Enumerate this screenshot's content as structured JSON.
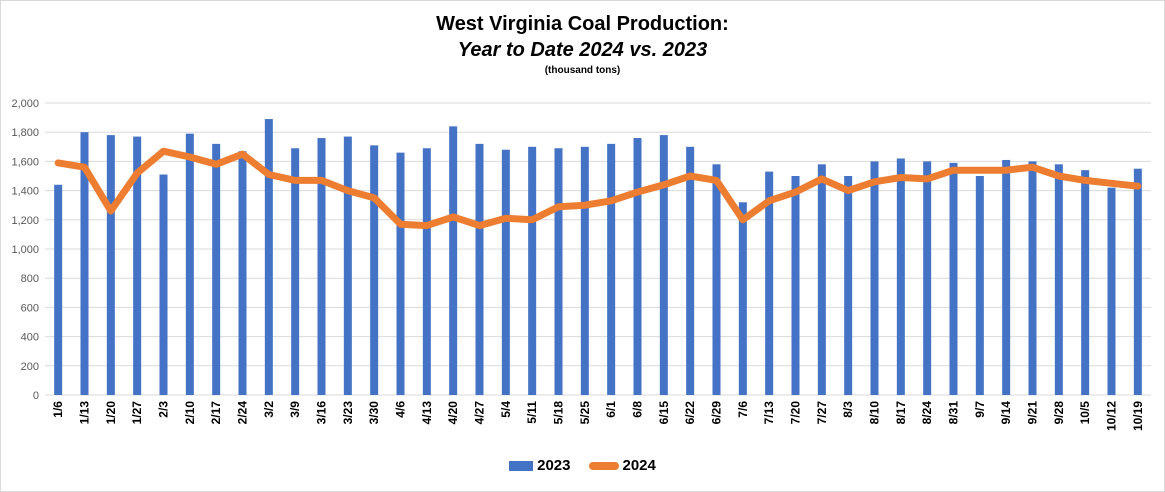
{
  "title": "West Virginia Coal Production:",
  "subtitle": "Year to Date 2024 vs. 2023",
  "units": "(thousand tons)",
  "colors": {
    "series_2023": "#4472C4",
    "series_2024": "#ED7D31",
    "gridline": "#d9d9d9",
    "axis_text": "#595959"
  },
  "legend": {
    "items": [
      {
        "label": "2023",
        "kind": "bar"
      },
      {
        "label": "2024",
        "kind": "line"
      }
    ]
  },
  "chart_data": {
    "type": "bar",
    "title": "West Virginia Coal Production:",
    "subtitle": "Year to Date 2024 vs. 2023",
    "units": "(thousand tons)",
    "xlabel": "",
    "ylabel": "",
    "ylim": [
      0,
      2000
    ],
    "yticks": [
      0,
      200,
      400,
      600,
      800,
      1000,
      1200,
      1400,
      1600,
      1800,
      2000
    ],
    "ytick_labels": [
      "0",
      "200",
      "400",
      "600",
      "800",
      "1,000",
      "1,200",
      "1,400",
      "1,600",
      "1,800",
      "2,000"
    ],
    "grid": true,
    "legend_position": "bottom",
    "categories": [
      "1/6",
      "1/13",
      "1/20",
      "1/27",
      "2/3",
      "2/10",
      "2/17",
      "2/24",
      "3/2",
      "3/9",
      "3/16",
      "3/23",
      "3/30",
      "4/6",
      "4/13",
      "4/20",
      "4/27",
      "5/4",
      "5/11",
      "5/18",
      "5/25",
      "6/1",
      "6/8",
      "6/15",
      "6/22",
      "6/29",
      "7/6",
      "7/13",
      "7/20",
      "7/27",
      "8/3",
      "8/10",
      "8/17",
      "8/24",
      "8/31",
      "9/7",
      "9/14",
      "9/21",
      "9/28",
      "10/5",
      "10/12",
      "10/19"
    ],
    "series": [
      {
        "name": "2023",
        "type": "bar",
        "values": [
          1440,
          1800,
          1780,
          1770,
          1510,
          1790,
          1720,
          1670,
          1890,
          1690,
          1760,
          1770,
          1710,
          1660,
          1690,
          1840,
          1720,
          1680,
          1700,
          1690,
          1700,
          1720,
          1760,
          1780,
          1700,
          1580,
          1320,
          1530,
          1500,
          1580,
          1500,
          1600,
          1620,
          1600,
          1590,
          1500,
          1610,
          1600,
          1580,
          1540,
          1420,
          1550
        ]
      },
      {
        "name": "2024",
        "type": "line",
        "values": [
          1590,
          1560,
          1260,
          1520,
          1670,
          1630,
          1580,
          1650,
          1510,
          1470,
          1470,
          1400,
          1350,
          1170,
          1160,
          1220,
          1160,
          1210,
          1200,
          1290,
          1300,
          1330,
          1390,
          1440,
          1500,
          1470,
          1200,
          1330,
          1390,
          1480,
          1400,
          1460,
          1490,
          1480,
          1540,
          1540,
          1540,
          1560,
          1500,
          1470,
          1450,
          1430
        ]
      }
    ]
  }
}
